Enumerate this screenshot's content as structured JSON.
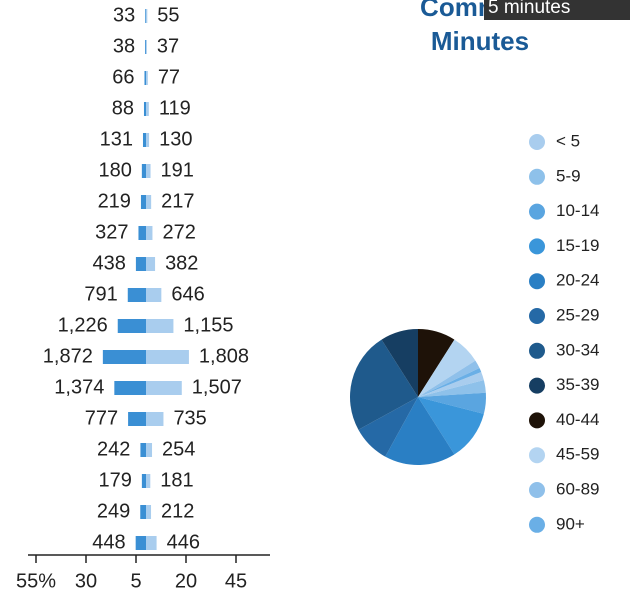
{
  "chart_data": [
    {
      "type": "pyramid",
      "series": [
        {
          "name": "left",
          "color": "#3a8fd4",
          "values": [
            33,
            38,
            66,
            88,
            131,
            180,
            219,
            327,
            438,
            791,
            1226,
            1872,
            1374,
            777,
            242,
            179,
            249,
            448
          ],
          "value_labels": [
            "33",
            "38",
            "66",
            "88",
            "131",
            "180",
            "219",
            "327",
            "438",
            "791",
            "1,226",
            "1,872",
            "1,374",
            "777",
            "242",
            "179",
            "249",
            "448"
          ]
        },
        {
          "name": "right",
          "color": "#a9cdee",
          "values": [
            55,
            37,
            77,
            119,
            130,
            191,
            217,
            272,
            382,
            646,
            1155,
            1808,
            1507,
            735,
            254,
            181,
            212,
            446
          ],
          "value_labels": [
            "55",
            "37",
            "77",
            "119",
            "130",
            "191",
            "217",
            "272",
            "382",
            "646",
            "1,155",
            "1,808",
            "1,507",
            "735",
            "254",
            "181",
            "212",
            "446"
          ]
        }
      ],
      "xlim": [
        -59,
        62
      ],
      "xticks": [
        {
          "value": -55,
          "label": "55%"
        },
        {
          "value": -30,
          "label": "30"
        },
        {
          "value": -5,
          "label": "5"
        },
        20,
        45
      ]
    },
    {
      "type": "pie",
      "title": "Commute Minutes",
      "tooltip": "5 minutes",
      "categories": [
        "< 5",
        "5-9",
        "10-14",
        "15-19",
        "20-24",
        "25-29",
        "30-34",
        "35-39",
        "40-44",
        "45-59",
        "60-89",
        "90+"
      ],
      "values": [
        2,
        3,
        5,
        12,
        17,
        9,
        24,
        9,
        9,
        7,
        2,
        1
      ],
      "colors": [
        "#a9cdee",
        "#8ec1ea",
        "#5aa5e0",
        "#3a96da",
        "#2a7fc4",
        "#2569a6",
        "#1f5a8c",
        "#163e62",
        "#1e1208",
        "#b3d4f1",
        "#8fc0ea",
        "#6aafe6"
      ]
    }
  ]
}
